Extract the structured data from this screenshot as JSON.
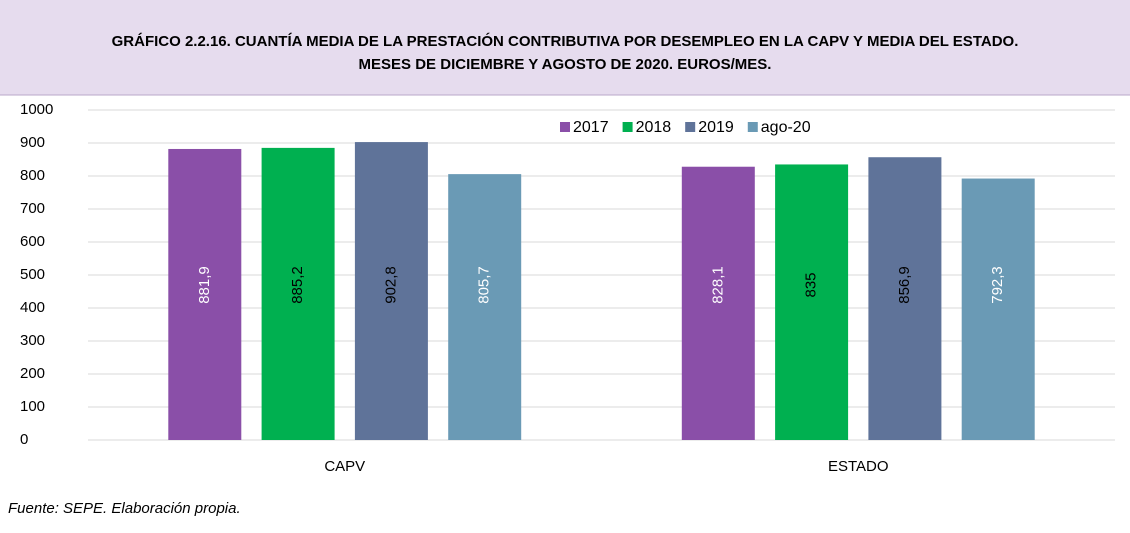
{
  "chart_data": {
    "type": "bar",
    "title": [
      "GRÁFICO 2.2.16. CUANTÍA MEDIA DE LA PRESTACIÓN CONTRIBUTIVA POR DESEMPLEO EN LA CAPV Y MEDIA DEL ESTADO.",
      "MESES DE DICIEMBRE Y AGOSTO DE 2020. EUROS/MES."
    ],
    "categories": [
      "CAPV",
      "ESTADO"
    ],
    "series": [
      {
        "name": "2017",
        "color": "#8a4fa8",
        "label_color": "#ffffff",
        "values": [
          881.9,
          828.1
        ],
        "value_labels": [
          "881,9",
          "828,1"
        ]
      },
      {
        "name": "2018",
        "color": "#00b050",
        "label_color": "#000000",
        "values": [
          885.2,
          835
        ],
        "value_labels": [
          "885,2",
          "835"
        ]
      },
      {
        "name": "2019",
        "color": "#5f7399",
        "label_color": "#000000",
        "values": [
          902.8,
          856.9
        ],
        "value_labels": [
          "902,8",
          "856,9"
        ]
      },
      {
        "name": "ago-20",
        "color": "#6a9ab5",
        "label_color": "#ffffff",
        "values": [
          805.7,
          792.3
        ],
        "value_labels": [
          "805,7",
          "792,3"
        ]
      }
    ],
    "ylim": [
      0,
      1000
    ],
    "yticks": [
      0,
      100,
      200,
      300,
      400,
      500,
      600,
      700,
      800,
      900,
      1000
    ],
    "grid": true,
    "legend": "top-right",
    "source": "Fuente: SEPE. Elaboración propia."
  }
}
